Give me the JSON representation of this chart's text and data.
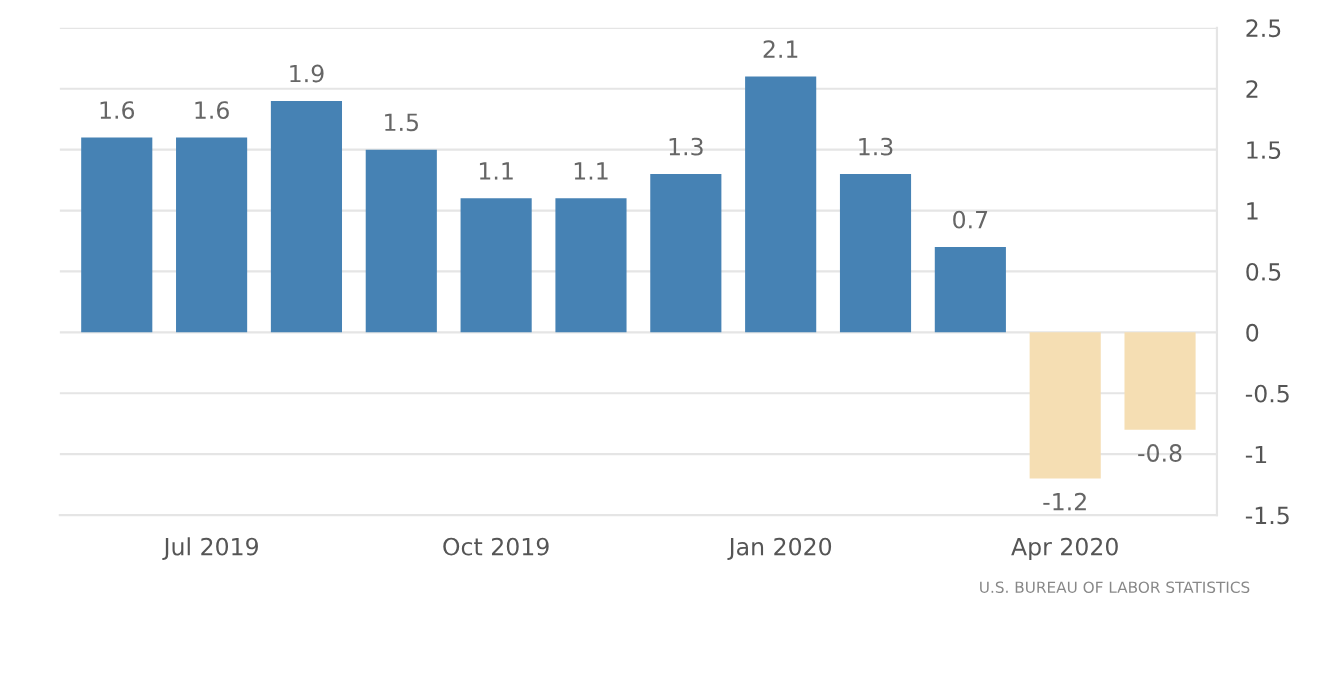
{
  "chart_data": {
    "type": "bar",
    "categories": [
      null,
      "Jul 2019",
      null,
      null,
      "Oct 2019",
      null,
      null,
      "Jan 2020",
      null,
      null,
      "Apr 2020",
      null
    ],
    "values": [
      1.6,
      1.6,
      1.9,
      1.5,
      1.1,
      1.1,
      1.3,
      2.1,
      1.3,
      0.7,
      -1.2,
      -0.8
    ],
    "colors": [
      "#4682b4",
      "#4682b4",
      "#4682b4",
      "#4682b4",
      "#4682b4",
      "#4682b4",
      "#4682b4",
      "#4682b4",
      "#4682b4",
      "#4682b4",
      "#f5deb3",
      "#f5deb3"
    ],
    "ylim": [
      -1.5,
      2.5
    ],
    "yticks": [
      -1.5,
      -1,
      -0.5,
      0,
      0.5,
      1,
      1.5,
      2,
      2.5
    ],
    "grid": "y",
    "data_labels": true,
    "annotations": [
      "U.S. BUREAU OF LABOR STATISTICS"
    ]
  }
}
